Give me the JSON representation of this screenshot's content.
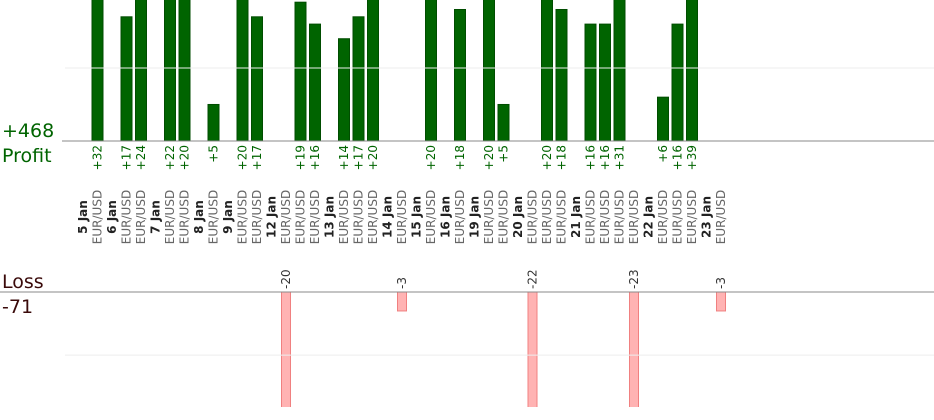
{
  "chart_data": {
    "type": "bar",
    "profit_title": "Profit",
    "profit_total": {
      "value": 468,
      "label": "+468"
    },
    "loss_title": "Loss",
    "loss_total": -71,
    "profit_color": "#006400",
    "loss_color": "#ffb3b3",
    "ylim": [
      0,
      19.3
    ],
    "y2lim": [
      -18.2,
      0
    ],
    "gridlines": [
      10
    ],
    "y2gridlines": [
      -10
    ],
    "days": [
      {
        "date": "5 Jan",
        "trades": [
          {
            "pair": "EUR/USD",
            "value": 32,
            "value_label": "+32"
          }
        ]
      },
      {
        "date": "6 Jan",
        "trades": [
          {
            "pair": "EUR/USD",
            "value": 17,
            "value_label": "+17"
          },
          {
            "pair": "EUR/USD",
            "value": 24,
            "value_label": "+24"
          }
        ]
      },
      {
        "date": "7 Jan",
        "trades": [
          {
            "pair": "EUR/USD",
            "value": 22,
            "value_label": "+22"
          },
          {
            "pair": "EUR/USD",
            "value": 20,
            "value_label": "+20"
          }
        ]
      },
      {
        "date": "8 Jan",
        "trades": [
          {
            "pair": "EUR/USD",
            "value": 5,
            "value_label": "+5"
          }
        ]
      },
      {
        "date": "9 Jan",
        "trades": [
          {
            "pair": "EUR/USD",
            "value": 20,
            "value_label": "+20"
          },
          {
            "pair": "EUR/USD",
            "value": 17,
            "value_label": "+17"
          }
        ]
      },
      {
        "date": "12 Jan",
        "trades": [
          {
            "pair": "EUR/USD",
            "value": -20
          },
          {
            "pair": "EUR/USD",
            "value": 19,
            "value_label": "+19"
          },
          {
            "pair": "EUR/USD",
            "value": 16,
            "value_label": "+16"
          }
        ]
      },
      {
        "date": "13 Jan",
        "trades": [
          {
            "pair": "EUR/USD",
            "value": 14,
            "value_label": "+14"
          },
          {
            "pair": "EUR/USD",
            "value": 17,
            "value_label": "+17"
          },
          {
            "pair": "EUR/USD",
            "value": 20,
            "value_label": "+20"
          }
        ]
      },
      {
        "date": "14 Jan",
        "trades": [
          {
            "pair": "EUR/USD",
            "value": -3
          }
        ]
      },
      {
        "date": "15 Jan",
        "trades": [
          {
            "pair": "EUR/USD",
            "value": 20,
            "value_label": "+20"
          }
        ]
      },
      {
        "date": "16 Jan",
        "trades": [
          {
            "pair": "EUR/USD",
            "value": 18,
            "value_label": "+18"
          }
        ]
      },
      {
        "date": "19 Jan",
        "trades": [
          {
            "pair": "EUR/USD",
            "value": 20,
            "value_label": "+20"
          },
          {
            "pair": "EUR/USD",
            "value": 5,
            "value_label": "+5"
          }
        ]
      },
      {
        "date": "20 Jan",
        "trades": [
          {
            "pair": "EUR/USD",
            "value": -22
          },
          {
            "pair": "EUR/USD",
            "value": 20,
            "value_label": "+20"
          },
          {
            "pair": "EUR/USD",
            "value": 18,
            "value_label": "+18"
          }
        ]
      },
      {
        "date": "21 Jan",
        "trades": [
          {
            "pair": "EUR/USD",
            "value": 16,
            "value_label": "+16"
          },
          {
            "pair": "EUR/USD",
            "value": 16,
            "value_label": "+16"
          },
          {
            "pair": "EUR/USD",
            "value": 31,
            "value_label": "+31"
          },
          {
            "pair": "EUR/USD",
            "value": -23
          }
        ]
      },
      {
        "date": "22 Jan",
        "trades": [
          {
            "pair": "EUR/USD",
            "value": 6,
            "value_label": "+6"
          },
          {
            "pair": "EUR/USD",
            "value": 16,
            "value_label": "+16"
          },
          {
            "pair": "EUR/USD",
            "value": 39,
            "value_label": "+39"
          }
        ]
      },
      {
        "date": "23 Jan",
        "trades": [
          {
            "pair": "EUR/USD",
            "value": -3
          }
        ]
      }
    ]
  }
}
